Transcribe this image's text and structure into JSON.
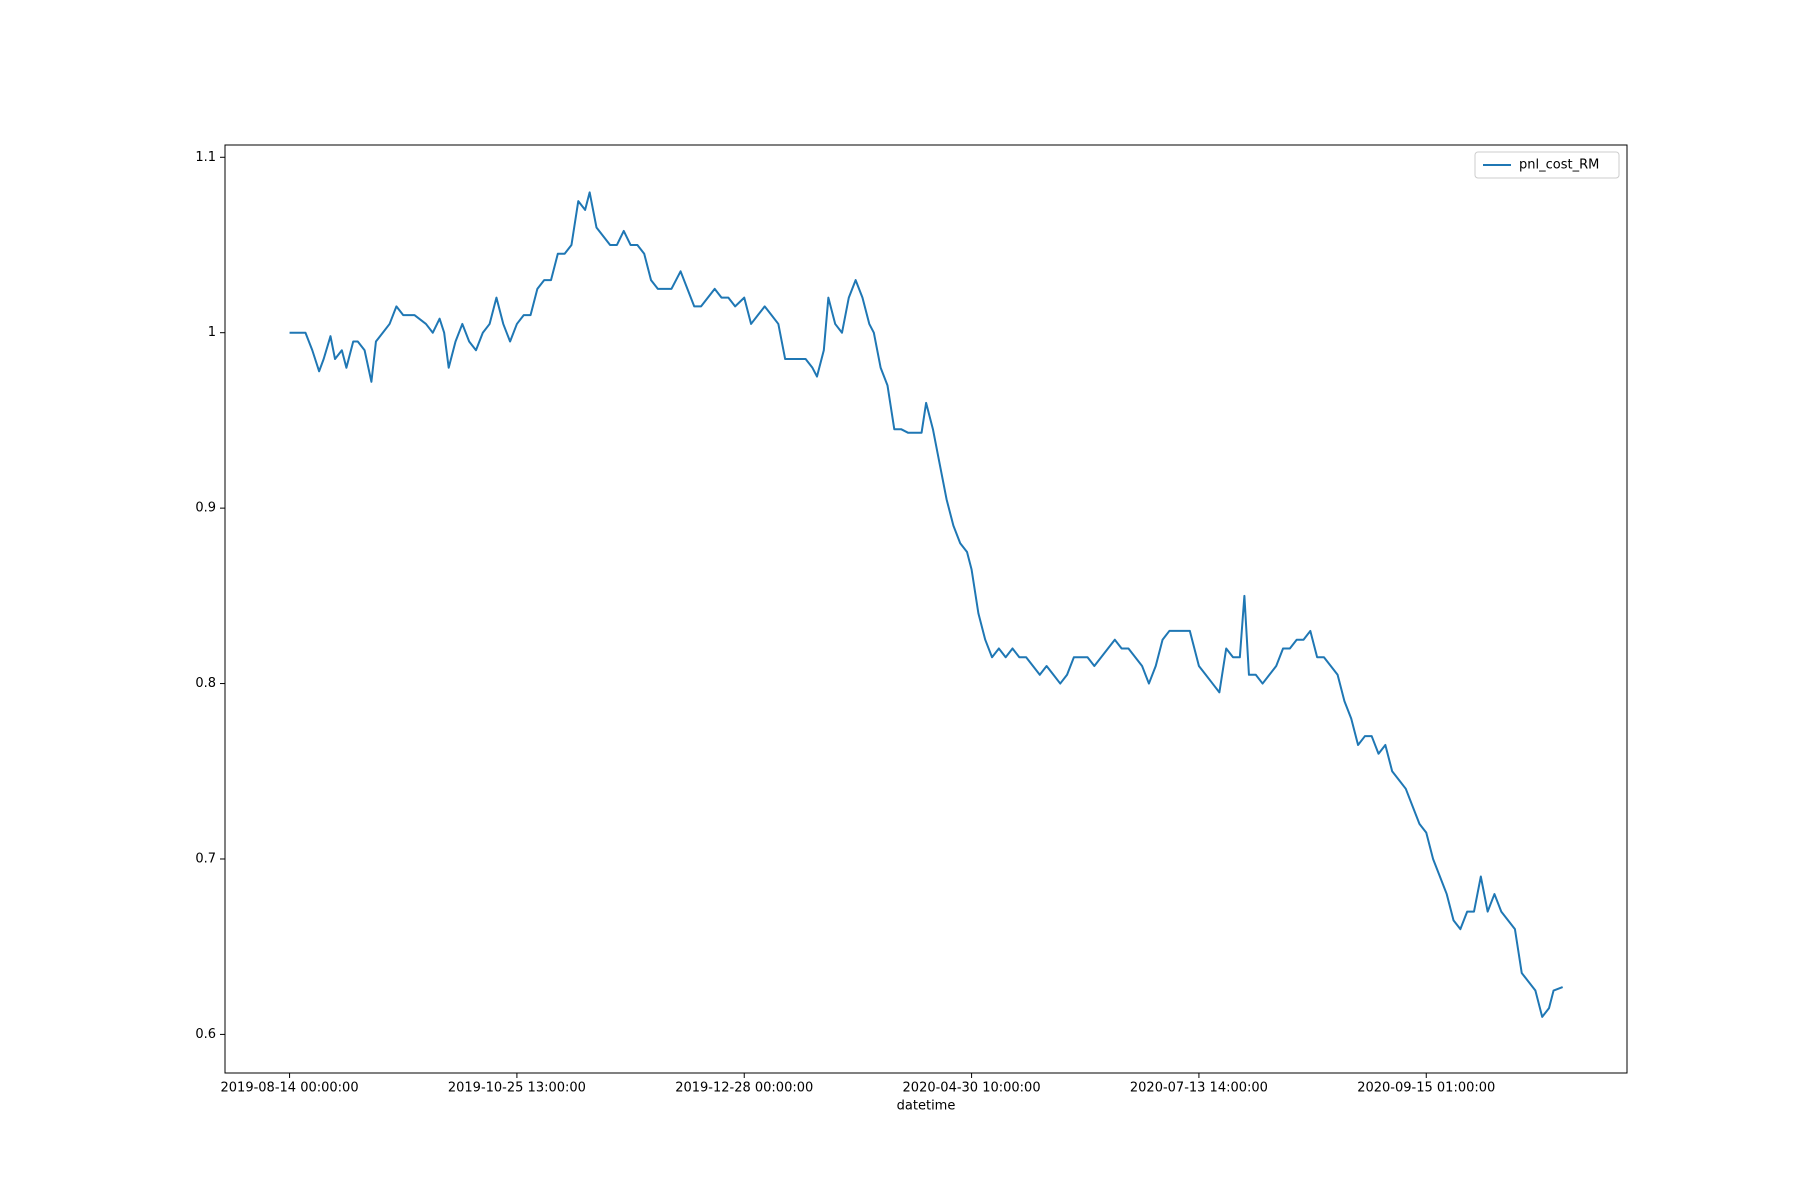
{
  "chart_data": {
    "type": "line",
    "xlabel": "datetime",
    "x": [
      0,
      7,
      10,
      13,
      15,
      18,
      20,
      23,
      25,
      28,
      30,
      33,
      36,
      38,
      41,
      44,
      47,
      50,
      55,
      60,
      63,
      66,
      68,
      70,
      73,
      76,
      79,
      82,
      85,
      88,
      91,
      94,
      97,
      100,
      103,
      106,
      109,
      112,
      115,
      118,
      121,
      124,
      127,
      130,
      132,
      135,
      138,
      141,
      144,
      147,
      150,
      153,
      156,
      159,
      162,
      168,
      172,
      175,
      178,
      181,
      184,
      187,
      190,
      193,
      196,
      200,
      203,
      206,
      209,
      212,
      215,
      218,
      221,
      224,
      227,
      230,
      232,
      235,
      237,
      240,
      243,
      246,
      249,
      252,
      255,
      257,
      260,
      263,
      266,
      269,
      272,
      275,
      278,
      280,
      283,
      286,
      289,
      292,
      295,
      298,
      300,
      303,
      306,
      309,
      312,
      315,
      318,
      321,
      324,
      327,
      330,
      333,
      336,
      339,
      342,
      345,
      348,
      351,
      354,
      357,
      360,
      363,
      366,
      369,
      372,
      375,
      378,
      381,
      384,
      387,
      390,
      393,
      396,
      400,
      403,
      406,
      409,
      412,
      415,
      418,
      420,
      422,
      425,
      428,
      431,
      434,
      437,
      440,
      443,
      446,
      449,
      452,
      455,
      458,
      461,
      464,
      467,
      470,
      473,
      476,
      479,
      482,
      485,
      488,
      491,
      494,
      497,
      500,
      503,
      506,
      509,
      512,
      515,
      518,
      521,
      524,
      527,
      530,
      533,
      536,
      539,
      542,
      545,
      548,
      551,
      554,
      556,
      560
    ],
    "series": [
      {
        "name": "pnl_cost_RM",
        "color": "#1f77b4",
        "values": [
          1.0,
          1.0,
          0.99,
          0.978,
          0.985,
          0.998,
          0.985,
          0.99,
          0.98,
          0.995,
          0.995,
          0.99,
          0.972,
          0.995,
          1.0,
          1.005,
          1.015,
          1.01,
          1.01,
          1.005,
          1.0,
          1.008,
          1.0,
          0.98,
          0.995,
          1.005,
          0.995,
          0.99,
          1.0,
          1.005,
          1.02,
          1.005,
          0.995,
          1.005,
          1.01,
          1.01,
          1.025,
          1.03,
          1.03,
          1.045,
          1.045,
          1.05,
          1.075,
          1.07,
          1.08,
          1.06,
          1.055,
          1.05,
          1.05,
          1.058,
          1.05,
          1.05,
          1.045,
          1.03,
          1.025,
          1.025,
          1.035,
          1.025,
          1.015,
          1.015,
          1.02,
          1.025,
          1.02,
          1.02,
          1.015,
          1.02,
          1.005,
          1.01,
          1.015,
          1.01,
          1.005,
          0.985,
          0.985,
          0.985,
          0.985,
          0.98,
          0.975,
          0.99,
          1.02,
          1.005,
          1.0,
          1.02,
          1.03,
          1.02,
          1.005,
          1.0,
          0.98,
          0.97,
          0.945,
          0.945,
          0.943,
          0.943,
          0.943,
          0.96,
          0.945,
          0.925,
          0.905,
          0.89,
          0.88,
          0.875,
          0.865,
          0.84,
          0.825,
          0.815,
          0.82,
          0.815,
          0.82,
          0.815,
          0.815,
          0.81,
          0.805,
          0.81,
          0.805,
          0.8,
          0.805,
          0.815,
          0.815,
          0.815,
          0.81,
          0.815,
          0.82,
          0.825,
          0.82,
          0.82,
          0.815,
          0.81,
          0.8,
          0.81,
          0.825,
          0.83,
          0.83,
          0.83,
          0.83,
          0.81,
          0.805,
          0.8,
          0.795,
          0.82,
          0.815,
          0.815,
          0.85,
          0.805,
          0.805,
          0.8,
          0.805,
          0.81,
          0.82,
          0.82,
          0.825,
          0.825,
          0.83,
          0.815,
          0.815,
          0.81,
          0.805,
          0.79,
          0.78,
          0.765,
          0.77,
          0.77,
          0.76,
          0.765,
          0.75,
          0.745,
          0.74,
          0.73,
          0.72,
          0.715,
          0.7,
          0.69,
          0.68,
          0.665,
          0.66,
          0.67,
          0.67,
          0.69,
          0.67,
          0.68,
          0.67,
          0.665,
          0.66,
          0.635,
          0.63,
          0.625,
          0.61,
          0.615,
          0.625,
          0.627
        ]
      }
    ],
    "xlim": [
      -28.4,
      588.3
    ],
    "xticks": [
      {
        "value": 0,
        "label": "2019-08-14 00:00:00"
      },
      {
        "value": 100,
        "label": "2019-10-25 13:00:00"
      },
      {
        "value": 200,
        "label": "2019-12-28 00:00:00"
      },
      {
        "value": 300,
        "label": "2020-04-30 10:00:00"
      },
      {
        "value": 400,
        "label": "2020-07-13 14:00:00"
      },
      {
        "value": 500,
        "label": "2020-09-15 01:00:00"
      }
    ],
    "ylim": [
      0.578,
      1.107
    ],
    "yticks": [
      0.6,
      0.7,
      0.8,
      0.9,
      1.0,
      1.1
    ],
    "legend": "upper right"
  }
}
